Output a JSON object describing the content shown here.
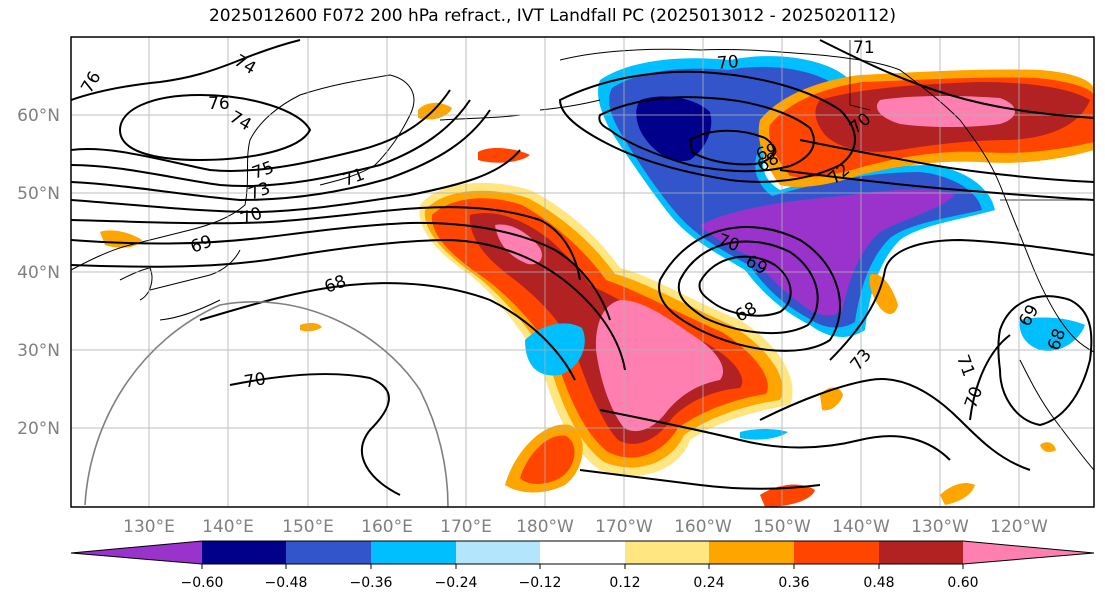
{
  "title": "2025012600 F072 200 hPa refract., IVT Landfall PC (2025013012 - 2025020112)",
  "map": {
    "lat_labels": [
      "20°N",
      "30°N",
      "40°N",
      "50°N",
      "60°N"
    ],
    "lon_labels": [
      "130°E",
      "140°E",
      "150°E",
      "160°E",
      "170°E",
      "180°W",
      "170°W",
      "160°W",
      "150°W",
      "140°W",
      "130°W",
      "120°W"
    ],
    "contour_labels": [
      "76",
      "74",
      "76",
      "74",
      "75",
      "73",
      "71",
      "70",
      "69",
      "68",
      "70",
      "70",
      "71",
      "70",
      "68",
      "70",
      "69",
      "68",
      "73",
      "71",
      "70",
      "69",
      "68",
      "72",
      "69"
    ]
  },
  "colorbar": {
    "colors": [
      "#9933cc",
      "#00008b",
      "#3355cc",
      "#00bfff",
      "#b3e5fc",
      "#ffffff",
      "#ffe680",
      "#ffa500",
      "#ff4500",
      "#b22222",
      "#ff80b0"
    ],
    "tick_labels": [
      "−0.60",
      "−0.48",
      "−0.36",
      "−0.24",
      "−0.12",
      "0.12",
      "0.24",
      "0.36",
      "0.48",
      "0.60"
    ]
  }
}
